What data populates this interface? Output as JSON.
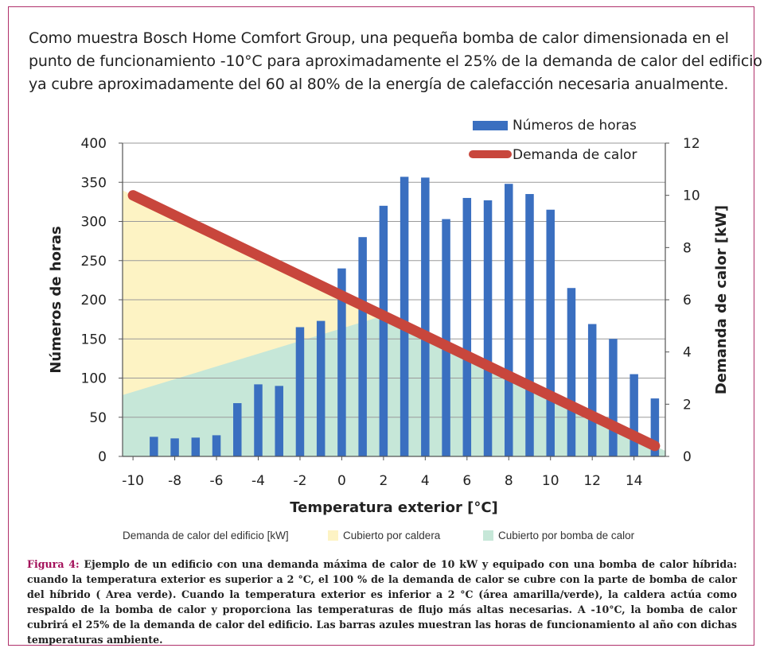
{
  "intro": [
    "Como muestra Bosch Home Comfort Group, una pequeña bomba de calor dimensionada en el",
    "punto de funcionamiento -10°C para aproximadamente el 25% de la demanda de calor del edificio",
    "ya cubre aproximadamente del 60 al 80% de la energía de calefacción necesaria anualmente."
  ],
  "chart_data": {
    "type": "bar",
    "x": [
      -10,
      -9,
      -8,
      -7,
      -6,
      -5,
      -4,
      -3,
      -2,
      -1,
      0,
      1,
      2,
      3,
      4,
      5,
      6,
      7,
      8,
      9,
      10,
      11,
      12,
      13,
      14,
      15
    ],
    "series": [
      {
        "name": "Números de horas",
        "values": [
          0,
          25,
          23,
          24,
          27,
          68,
          92,
          90,
          165,
          173,
          240,
          280,
          320,
          357,
          356,
          303,
          330,
          327,
          348,
          335,
          315,
          215,
          169,
          150,
          105,
          74
        ],
        "color": "#3a6fc0"
      },
      {
        "name": "Demanda de calor",
        "x": [
          -10,
          15
        ],
        "values": [
          10,
          0.4
        ],
        "axis": "right",
        "color": "#c8463c"
      }
    ],
    "areas": [
      {
        "name": "Cubierto por caldera",
        "color": "#fdf3c4"
      },
      {
        "name": "Cubierto por bomba de calor",
        "color": "#c6e7d8"
      }
    ],
    "xlabel": "Temperatura exterior [°C]",
    "ylabel": "Números de horas",
    "y2label": "Demanda de calor [kW]",
    "xticks": [
      "-10",
      "-8",
      "-6",
      "-4",
      "-2",
      "0",
      "2",
      "4",
      "6",
      "8",
      "10",
      "12",
      "14"
    ],
    "yticks": [
      "0",
      "50",
      "100",
      "150",
      "200",
      "250",
      "300",
      "350",
      "400"
    ],
    "y2ticks": [
      "0",
      "2",
      "4",
      "6",
      "8",
      "10",
      "12"
    ],
    "ylim": [
      0,
      400
    ],
    "y2lim": [
      0,
      12
    ],
    "legend_placement": "top-right",
    "grid": true
  },
  "legend_bottom": {
    "demand": "Demanda de calor del edificio [kW]",
    "caldera": "Cubierto por caldera",
    "bomba": "Cubierto por bomba de calor"
  },
  "caption": {
    "label": "Figura 4:",
    "text": "Ejemplo de un edificio con una demanda máxima de calor de 10 kW y equipado con una bomba de calor híbrida: cuando la temperatura exterior es superior a 2 °C, el 100 % de la demanda de calor se cubre con la parte de bomba de calor del híbrido ( Area verde). Cuando la temperatura exterior es inferior a 2 °C (área amarilla/verde), la caldera actúa como respaldo de la bomba de calor y proporciona las temperaturas de flujo más altas necesarias. A -10°C, la bomba de calor cubrirá el 25% de la demanda de calor del edificio. Las barras azules muestran las horas de funcionamiento al año con dichas temperaturas ambiente."
  }
}
